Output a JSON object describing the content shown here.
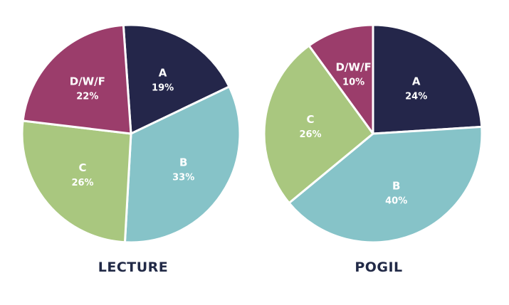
{
  "chart_data": [
    {
      "type": "pie",
      "title": "LECTURE",
      "categories": [
        "A",
        "B",
        "C",
        "D/W/F"
      ],
      "values": [
        19,
        33,
        26,
        22
      ],
      "value_labels": [
        "19%",
        "33%",
        "26%",
        "22%"
      ],
      "colors": [
        "#24264a",
        "#86c3c8",
        "#a9c77f",
        "#9b3d6b"
      ]
    },
    {
      "type": "pie",
      "title": "POGIL",
      "categories": [
        "A",
        "B",
        "C",
        "D/W/F"
      ],
      "values": [
        24,
        40,
        26,
        10
      ],
      "value_labels": [
        "24%",
        "40%",
        "26%",
        "10%"
      ],
      "colors": [
        "#24264a",
        "#86c3c8",
        "#a9c77f",
        "#9b3d6b"
      ]
    }
  ]
}
